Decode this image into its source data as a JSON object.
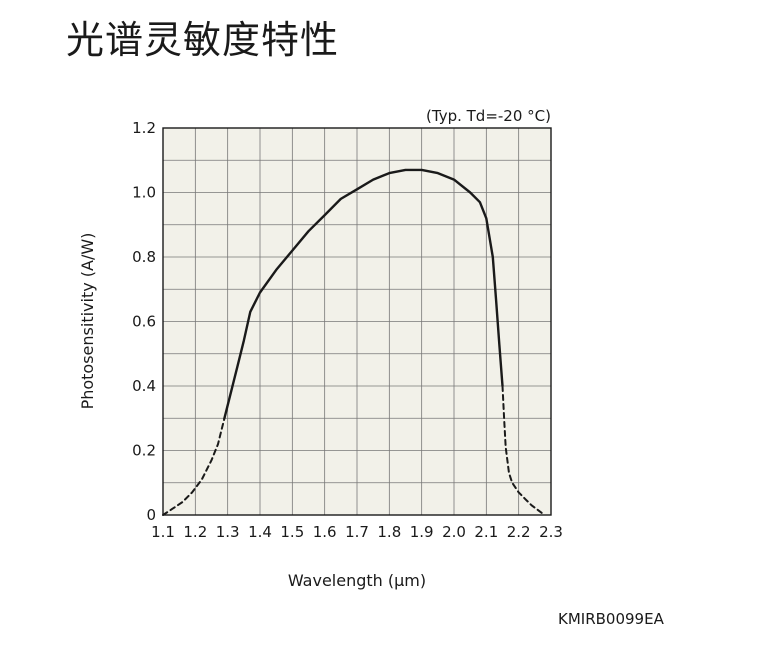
{
  "page": {
    "title": "光谱灵敏度特性",
    "figure_code": "KMIRB0099EA"
  },
  "chart_data": {
    "type": "line",
    "condition": "(Typ. Td=-20 °C)",
    "xlabel": "Wavelength (µm)",
    "ylabel": "Photosensitivity (A/W)",
    "xlim": [
      1.1,
      2.3
    ],
    "ylim": [
      0,
      1.2
    ],
    "xticks": [
      1.1,
      1.2,
      1.3,
      1.4,
      1.5,
      1.6,
      1.7,
      1.8,
      1.9,
      2.0,
      2.1,
      2.2,
      2.3
    ],
    "xtick_labels": [
      "1.1",
      "1.2",
      "1.3",
      "1.4",
      "1.5",
      "1.6",
      "1.7",
      "1.8",
      "1.9",
      "2.0",
      "2.1",
      "2.2",
      "2.3"
    ],
    "yticks": [
      0,
      0.2,
      0.4,
      0.6,
      0.8,
      1.0,
      1.2
    ],
    "ytick_labels": [
      "0",
      "0.2",
      "0.4",
      "0.6",
      "0.8",
      "1.0",
      "1.2"
    ],
    "x_minor_step": 0.1,
    "y_minor_step": 0.1,
    "grid": true,
    "plot_background": "#f2f1e9",
    "grid_color": "#777777",
    "line_color": "#1a1a1a",
    "series": [
      {
        "style": "solid",
        "x": [
          1.29,
          1.31,
          1.33,
          1.35,
          1.37,
          1.4,
          1.45,
          1.5,
          1.55,
          1.6,
          1.65,
          1.7,
          1.75,
          1.8,
          1.85,
          1.9,
          1.95,
          2.0,
          2.05,
          2.08,
          2.1,
          2.12,
          2.13,
          2.14,
          2.15
        ],
        "y": [
          0.3,
          0.38,
          0.46,
          0.54,
          0.63,
          0.69,
          0.76,
          0.82,
          0.88,
          0.93,
          0.98,
          1.01,
          1.04,
          1.06,
          1.07,
          1.07,
          1.06,
          1.04,
          1.0,
          0.97,
          0.92,
          0.8,
          0.67,
          0.53,
          0.4
        ]
      },
      {
        "style": "dashed",
        "x": [
          1.1,
          1.13,
          1.16,
          1.19,
          1.22,
          1.25,
          1.27,
          1.29
        ],
        "y": [
          0.0,
          0.02,
          0.04,
          0.07,
          0.11,
          0.17,
          0.22,
          0.3
        ]
      },
      {
        "style": "dashed",
        "x": [
          2.15,
          2.155,
          2.16,
          2.17,
          2.18,
          2.2,
          2.22,
          2.24,
          2.26,
          2.28
        ],
        "y": [
          0.4,
          0.3,
          0.21,
          0.13,
          0.1,
          0.07,
          0.05,
          0.03,
          0.015,
          0.0
        ]
      }
    ]
  }
}
